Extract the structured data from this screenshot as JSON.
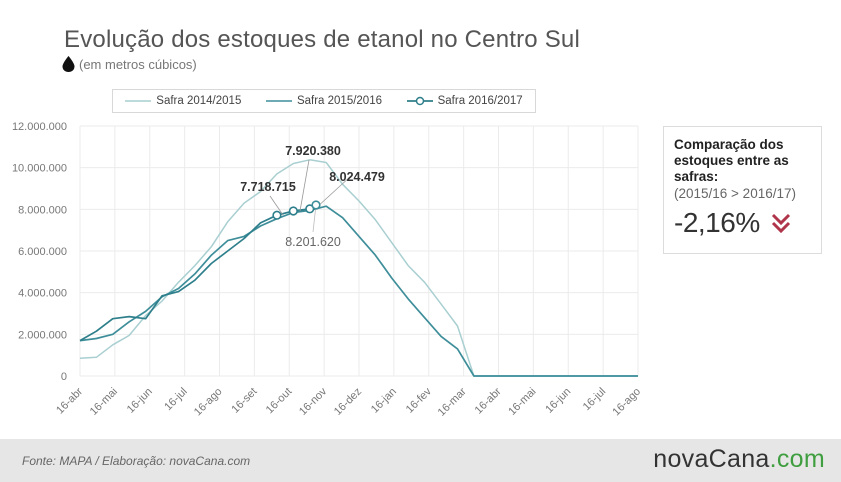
{
  "title": "Evolução dos estoques de etanol no Centro Sul",
  "subtitle": "(em metros cúbicos)",
  "legend": [
    "Safra 2014/2015",
    "Safra 2015/2016",
    "Safra 2016/2017"
  ],
  "card": {
    "heading": "Comparação dos estoques entre as safras:",
    "note": "(2015/16 > 2016/17)",
    "value": "-2,16%",
    "trend_color": "#b0344a"
  },
  "footer": {
    "source": "Fonte: MAPA  / Elaboração: novaCana.com",
    "brand_main": "novaCana",
    "brand_suffix": ".com"
  },
  "chart_data": {
    "type": "line",
    "ylim": [
      0,
      12000000
    ],
    "y_ticks": [
      "0",
      "2.000.000",
      "4.000.000",
      "6.000.000",
      "8.000.000",
      "10.000.000",
      "12.000.000"
    ],
    "x_tick_labels": [
      "16-abr",
      "16-mai",
      "16-jun",
      "16-jul",
      "16-ago",
      "16-set",
      "16-out",
      "16-nov",
      "16-dez",
      "16-jan",
      "16-fev",
      "16-mar",
      "16-abr",
      "16-mai",
      "16-jun",
      "16-jul",
      "16-ago"
    ],
    "grid": true,
    "legend_position": "top",
    "series": [
      {
        "name": "Safra 2014/2015",
        "color": "#a9cfd1",
        "values": [
          850000,
          900000,
          1500000,
          1950000,
          2900000,
          3600000,
          4500000,
          5300000,
          6200000,
          7400000,
          8300000,
          8850000,
          9700000,
          10200000,
          10380000,
          10250000,
          9200000,
          8400000,
          7500000,
          6400000,
          5300000,
          4500000,
          3450000,
          2400000,
          0,
          0,
          0,
          0,
          0,
          0,
          0,
          0,
          0,
          0,
          0
        ]
      },
      {
        "name": "Safra 2015/2016",
        "color": "#3e8e9a",
        "values": [
          1700000,
          1800000,
          2000000,
          2600000,
          3100000,
          3800000,
          4200000,
          4900000,
          5800000,
          6500000,
          6700000,
          7200000,
          7550000,
          7850000,
          7950000,
          8150000,
          7600000,
          6700000,
          5800000,
          4700000,
          3700000,
          2800000,
          1900000,
          1300000,
          0,
          0,
          0,
          0,
          0,
          0,
          0,
          0,
          0,
          0,
          0
        ]
      },
      {
        "name": "Safra 2016/2017",
        "color": "#2e7f8c",
        "values": [
          1700000,
          2150000,
          2750000,
          2850000,
          2750000,
          3850000,
          4050000,
          4600000,
          5400000,
          6000000,
          6600000,
          7350000,
          7718715,
          7920380,
          8024479,
          null,
          null,
          null,
          null,
          null,
          null,
          null,
          null,
          null,
          null,
          null,
          null,
          null,
          null,
          null,
          null,
          null,
          null,
          null,
          null
        ],
        "markers": [
          12,
          13,
          14
        ]
      }
    ],
    "annotations": [
      {
        "text": "7.718.715"
      },
      {
        "text": "7.920.380"
      },
      {
        "text": "8.024.479"
      },
      {
        "text": "8.201.620"
      }
    ]
  }
}
